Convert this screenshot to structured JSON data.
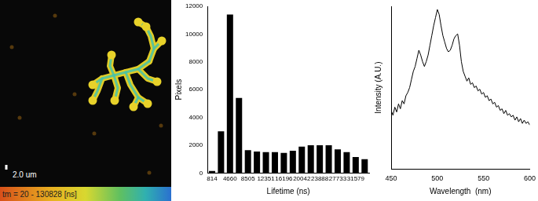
{
  "image_panel": {
    "scale_bar": "2.0 um",
    "color_bar_label": "tm = 20 - 130828 [ns]"
  },
  "chart_data": [
    {
      "type": "bar",
      "x_label": "Lifetime (ns)",
      "y_label": "Pixels",
      "categories": [
        "814",
        null,
        "4660",
        null,
        "8505",
        null,
        "12351",
        null,
        "16196",
        null,
        "20042",
        null,
        "23888",
        null,
        "27733",
        null,
        "31579",
        null
      ],
      "values": [
        150,
        3000,
        11400,
        5400,
        1650,
        1550,
        1500,
        1500,
        1450,
        1600,
        1900,
        2000,
        2000,
        2000,
        1700,
        1500,
        1150,
        1000
      ],
      "color": "#000000",
      "ylim": [
        0,
        12000
      ],
      "yticks": [
        0,
        2000,
        4000,
        6000,
        8000,
        10000,
        12000
      ],
      "grid": false
    },
    {
      "type": "line",
      "x_label": "Wavelength  (nm)",
      "y_label": "Intensity (A.U.)",
      "x": [
        450,
        452,
        454,
        456,
        458,
        460,
        462,
        464,
        466,
        468,
        470,
        472,
        474,
        476,
        478,
        480,
        482,
        484,
        486,
        488,
        490,
        492,
        494,
        496,
        498,
        500,
        502,
        504,
        506,
        508,
        510,
        512,
        514,
        516,
        518,
        520,
        522,
        524,
        526,
        528,
        530,
        532,
        534,
        536,
        538,
        540,
        542,
        544,
        546,
        548,
        550,
        552,
        554,
        556,
        558,
        560,
        562,
        564,
        566,
        568,
        570,
        572,
        574,
        576,
        578,
        580,
        582,
        584,
        586,
        588,
        590,
        592,
        594,
        596,
        598,
        600
      ],
      "values": [
        0.36,
        0.33,
        0.38,
        0.35,
        0.4,
        0.37,
        0.42,
        0.4,
        0.45,
        0.47,
        0.5,
        0.55,
        0.6,
        0.63,
        0.68,
        0.73,
        0.7,
        0.66,
        0.63,
        0.66,
        0.7,
        0.76,
        0.82,
        0.88,
        0.93,
        0.98,
        0.95,
        0.88,
        0.82,
        0.78,
        0.74,
        0.72,
        0.73,
        0.76,
        0.8,
        0.82,
        0.83,
        0.76,
        0.66,
        0.6,
        0.57,
        0.54,
        0.56,
        0.52,
        0.53,
        0.5,
        0.51,
        0.48,
        0.49,
        0.46,
        0.47,
        0.44,
        0.45,
        0.42,
        0.43,
        0.4,
        0.41,
        0.38,
        0.39,
        0.36,
        0.37,
        0.34,
        0.36,
        0.33,
        0.34,
        0.32,
        0.33,
        0.3,
        0.32,
        0.29,
        0.31,
        0.28,
        0.3,
        0.28,
        0.29,
        0.27
      ],
      "color": "#000000",
      "xlim": [
        450,
        600
      ],
      "xticks": [
        450,
        500,
        550,
        600
      ],
      "ylim": [
        0,
        1
      ],
      "tick_labels": "x",
      "grid": false
    }
  ]
}
